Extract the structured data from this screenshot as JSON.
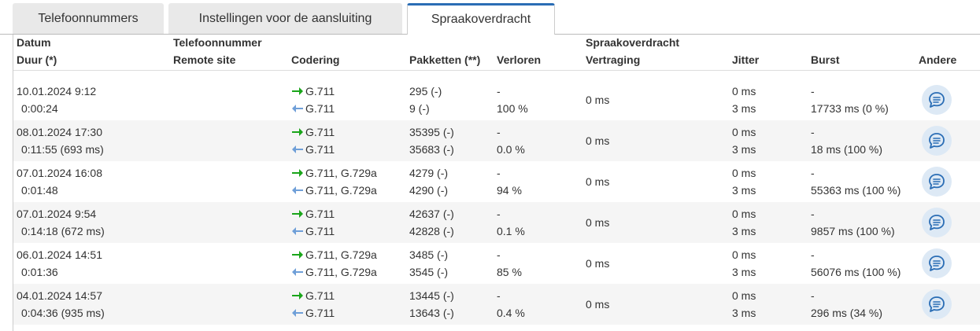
{
  "tabs": [
    "Telefoonnummers",
    "Instellingen voor de aansluiting",
    "Spraakoverdracht"
  ],
  "table": {
    "header": {
      "datum": "Datum",
      "duur": "Duur (*)",
      "telefoonnummer": "Telefoonnummer",
      "remote_site": "Remote site",
      "codering": "Codering",
      "pakketten": "Pakketten (**)",
      "verloren": "Verloren",
      "spraakoverdracht": "Spraakoverdracht",
      "vertraging": "Vertraging",
      "jitter": "Jitter",
      "burst": "Burst",
      "andere": "Andere"
    },
    "rows": [
      {
        "date": "10.01.2024 9:12",
        "duration": "0:00:24",
        "codec_out": "G.711",
        "codec_in": "G.711",
        "packets_out": "295 (-)",
        "packets_in": "9 (-)",
        "lost_out": "-",
        "lost_in": "100 %",
        "delay": "0 ms",
        "jitter_out": "0 ms",
        "jitter_in": "3 ms",
        "burst_out": "-",
        "burst_in": "17733 ms (0 %)"
      },
      {
        "date": "08.01.2024 17:30",
        "duration": "0:11:55 (693 ms)",
        "codec_out": "G.711",
        "codec_in": "G.711",
        "packets_out": "35395 (-)",
        "packets_in": "35683 (-)",
        "lost_out": "-",
        "lost_in": "0.0 %",
        "delay": "0 ms",
        "jitter_out": "0 ms",
        "jitter_in": "3 ms",
        "burst_out": "-",
        "burst_in": "18 ms (100 %)"
      },
      {
        "date": "07.01.2024 16:08",
        "duration": "0:01:48",
        "codec_out": "G.711, G.729a",
        "codec_in": "G.711, G.729a",
        "packets_out": "4279 (-)",
        "packets_in": "4290 (-)",
        "lost_out": "-",
        "lost_in": "94 %",
        "delay": "0 ms",
        "jitter_out": "0 ms",
        "jitter_in": "3 ms",
        "burst_out": "-",
        "burst_in": "55363 ms (100 %)"
      },
      {
        "date": "07.01.2024 9:54",
        "duration": "0:14:18 (672 ms)",
        "codec_out": "G.711",
        "codec_in": "G.711",
        "packets_out": "42637 (-)",
        "packets_in": "42828 (-)",
        "lost_out": "-",
        "lost_in": "0.1 %",
        "delay": "0 ms",
        "jitter_out": "0 ms",
        "jitter_in": "3 ms",
        "burst_out": "-",
        "burst_in": "9857 ms (100 %)"
      },
      {
        "date": "06.01.2024 14:51",
        "duration": "0:01:36",
        "codec_out": "G.711, G.729a",
        "codec_in": "G.711, G.729a",
        "packets_out": "3485 (-)",
        "packets_in": "3545 (-)",
        "lost_out": "-",
        "lost_in": "85 %",
        "delay": "0 ms",
        "jitter_out": "0 ms",
        "jitter_in": "3 ms",
        "burst_out": "-",
        "burst_in": "56076 ms (100 %)"
      },
      {
        "date": "04.01.2024 14:57",
        "duration": "0:04:36 (935 ms)",
        "codec_out": "G.711",
        "codec_in": "G.711",
        "packets_out": "13445 (-)",
        "packets_in": "13643 (-)",
        "lost_out": "-",
        "lost_in": "0.4 %",
        "delay": "0 ms",
        "jitter_out": "0 ms",
        "jitter_in": "3 ms",
        "burst_out": "-",
        "burst_in": "296 ms (34 %)"
      }
    ]
  }
}
